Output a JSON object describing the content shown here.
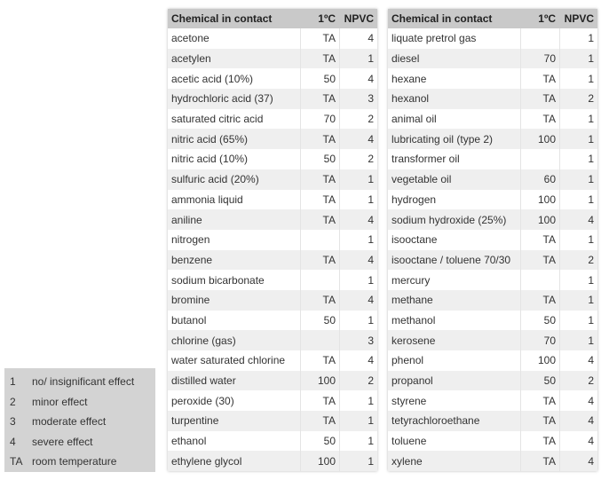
{
  "tables": [
    {
      "header": [
        "Chemical in contact",
        "1ºC",
        "NPVC"
      ],
      "rows": [
        [
          "acetone",
          "TA",
          4
        ],
        [
          "acetylen",
          "TA",
          1
        ],
        [
          "acetic acid (10%)",
          50,
          4
        ],
        [
          "hydrochloric acid (37)",
          "TA",
          3
        ],
        [
          "saturated citric acid",
          70,
          2
        ],
        [
          "nitric acid (65%)",
          "TA",
          4
        ],
        [
          "nitric acid (10%)",
          50,
          2
        ],
        [
          "sulfuric acid (20%)",
          "TA",
          1
        ],
        [
          "ammonia liquid",
          "TA",
          1
        ],
        [
          "aniline",
          "TA",
          4
        ],
        [
          "nitrogen",
          null,
          1
        ],
        [
          "benzene",
          "TA",
          4
        ],
        [
          "sodium bicarbonate",
          null,
          1
        ],
        [
          "bromine",
          "TA",
          4
        ],
        [
          "butanol",
          50,
          1
        ],
        [
          "chlorine (gas)",
          null,
          3
        ],
        [
          "water saturated chlorine",
          "TA",
          4
        ],
        [
          "distilled water",
          100,
          2
        ],
        [
          "peroxide (30)",
          "TA",
          1
        ],
        [
          "turpentine",
          "TA",
          1
        ],
        [
          "ethanol",
          50,
          1
        ],
        [
          "ethylene glycol",
          100,
          1
        ]
      ]
    },
    {
      "header": [
        "Chemical in contact",
        "1ºC",
        "NPVC"
      ],
      "rows": [
        [
          "liquate pretrol gas",
          null,
          1
        ],
        [
          "diesel",
          70,
          1
        ],
        [
          "hexane",
          "TA",
          1
        ],
        [
          "hexanol",
          "TA",
          2
        ],
        [
          "animal oil",
          "TA",
          1
        ],
        [
          "lubricating oil (type 2)",
          100,
          1
        ],
        [
          "transformer oil",
          null,
          1
        ],
        [
          "vegetable oil",
          60,
          1
        ],
        [
          "hydrogen",
          100,
          1
        ],
        [
          "sodium hydroxide (25%)",
          100,
          4
        ],
        [
          "isooctane",
          "TA",
          1
        ],
        [
          "isooctane / toluene 70/30",
          "TA",
          2
        ],
        [
          "mercury",
          null,
          1
        ],
        [
          "methane",
          "TA",
          1
        ],
        [
          "methanol",
          50,
          1
        ],
        [
          "kerosene",
          70,
          1
        ],
        [
          "phenol",
          100,
          4
        ],
        [
          "propanol",
          50,
          2
        ],
        [
          "styrene",
          "TA",
          4
        ],
        [
          "tetyrachloroethane",
          "TA",
          4
        ],
        [
          "toluene",
          "TA",
          4
        ],
        [
          "xylene",
          "TA",
          4
        ]
      ]
    }
  ],
  "legend": [
    [
      "1",
      "no/ insignificant effect"
    ],
    [
      "2",
      "minor effect"
    ],
    [
      "3",
      "moderate effect"
    ],
    [
      "4",
      "severe effect"
    ],
    [
      "TA",
      "room temperature"
    ]
  ]
}
